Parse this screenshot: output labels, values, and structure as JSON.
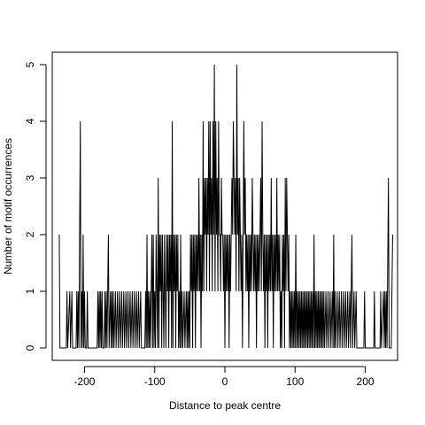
{
  "chart_data": {
    "type": "line",
    "title": "",
    "xlabel": "Distance to peak centre",
    "ylabel": "Number of motif occurrences",
    "xlim": [
      -246,
      246
    ],
    "ylim": [
      0,
      5
    ],
    "x_ticks": [
      -200,
      -100,
      0,
      100,
      200
    ],
    "y_ticks": [
      0,
      1,
      2,
      3,
      4,
      5
    ],
    "grid": false,
    "legend": "none",
    "line_color": "#000000",
    "points": [
      [
        -236,
        2
      ],
      [
        -235,
        0
      ],
      [
        -226,
        0
      ],
      [
        -225,
        1
      ],
      [
        -224,
        0
      ],
      [
        -221,
        1
      ],
      [
        -220,
        0
      ],
      [
        -218,
        1
      ],
      [
        -217,
        0
      ],
      [
        -212,
        0
      ],
      [
        -211,
        1
      ],
      [
        -210,
        0
      ],
      [
        -209,
        1
      ],
      [
        -208,
        0
      ],
      [
        -206,
        4
      ],
      [
        -205,
        0
      ],
      [
        -204,
        1
      ],
      [
        -203,
        0
      ],
      [
        -202,
        2
      ],
      [
        -201,
        0
      ],
      [
        -200,
        1
      ],
      [
        -199,
        0
      ],
      [
        -197,
        0
      ],
      [
        -196,
        1
      ],
      [
        -195,
        0
      ],
      [
        -182,
        0
      ],
      [
        -181,
        1
      ],
      [
        -180,
        0
      ],
      [
        -179,
        1
      ],
      [
        -178,
        0
      ],
      [
        -177,
        1
      ],
      [
        -176,
        0
      ],
      [
        -175,
        1
      ],
      [
        -174,
        0
      ],
      [
        -172,
        0
      ],
      [
        -171,
        1
      ],
      [
        -170,
        0
      ],
      [
        -169,
        1
      ],
      [
        -168,
        0
      ],
      [
        -166,
        2
      ],
      [
        -165,
        0
      ],
      [
        -163,
        1
      ],
      [
        -162,
        0
      ],
      [
        -161,
        1
      ],
      [
        -160,
        0
      ],
      [
        -159,
        1
      ],
      [
        -158,
        0
      ],
      [
        -156,
        1
      ],
      [
        -155,
        0
      ],
      [
        -153,
        1
      ],
      [
        -152,
        0
      ],
      [
        -150,
        1
      ],
      [
        -149,
        0
      ],
      [
        -147,
        1
      ],
      [
        -146,
        0
      ],
      [
        -144,
        1
      ],
      [
        -143,
        0
      ],
      [
        -141,
        1
      ],
      [
        -140,
        0
      ],
      [
        -138,
        1
      ],
      [
        -137,
        0
      ],
      [
        -135,
        1
      ],
      [
        -134,
        0
      ],
      [
        -132,
        1
      ],
      [
        -131,
        0
      ],
      [
        -129,
        1
      ],
      [
        -128,
        0
      ],
      [
        -126,
        1
      ],
      [
        -125,
        0
      ],
      [
        -123,
        1
      ],
      [
        -122,
        0
      ],
      [
        -120,
        1
      ],
      [
        -119,
        0
      ],
      [
        -114,
        0
      ],
      [
        -113,
        1
      ],
      [
        -112,
        0
      ],
      [
        -111,
        2
      ],
      [
        -110,
        0
      ],
      [
        -109,
        1
      ],
      [
        -108,
        0
      ],
      [
        -107,
        1
      ],
      [
        -106,
        0
      ],
      [
        -104,
        2
      ],
      [
        -103,
        0
      ],
      [
        -102,
        2
      ],
      [
        -101,
        0
      ],
      [
        -100,
        1
      ],
      [
        -99,
        0
      ],
      [
        -98,
        2
      ],
      [
        -97,
        1
      ],
      [
        -96,
        0
      ],
      [
        -95,
        3
      ],
      [
        -94,
        0
      ],
      [
        -93,
        2
      ],
      [
        -92,
        1
      ],
      [
        -91,
        2
      ],
      [
        -90,
        0
      ],
      [
        -89,
        2
      ],
      [
        -88,
        1
      ],
      [
        -87,
        0
      ],
      [
        -86,
        2
      ],
      [
        -85,
        1
      ],
      [
        -84,
        0
      ],
      [
        -83,
        2
      ],
      [
        -82,
        1
      ],
      [
        -81,
        2
      ],
      [
        -80,
        0
      ],
      [
        -79,
        2
      ],
      [
        -78,
        1
      ],
      [
        -77,
        2
      ],
      [
        -76,
        0
      ],
      [
        -75,
        4
      ],
      [
        -74,
        0
      ],
      [
        -73,
        2
      ],
      [
        -72,
        1
      ],
      [
        -71,
        2
      ],
      [
        -70,
        0
      ],
      [
        -69,
        2
      ],
      [
        -68,
        1
      ],
      [
        -67,
        2
      ],
      [
        -66,
        0
      ],
      [
        -65,
        1
      ],
      [
        -64,
        0
      ],
      [
        -63,
        2
      ],
      [
        -62,
        0
      ],
      [
        -61,
        1
      ],
      [
        -60,
        0
      ],
      [
        -58,
        1
      ],
      [
        -57,
        0
      ],
      [
        -55,
        1
      ],
      [
        -54,
        0
      ],
      [
        -53,
        1
      ],
      [
        -52,
        0
      ],
      [
        -51,
        1
      ],
      [
        -50,
        0
      ],
      [
        -49,
        2
      ],
      [
        -48,
        1
      ],
      [
        -47,
        2
      ],
      [
        -46,
        0
      ],
      [
        -45,
        2
      ],
      [
        -44,
        1
      ],
      [
        -43,
        2
      ],
      [
        -42,
        0
      ],
      [
        -41,
        2
      ],
      [
        -40,
        1
      ],
      [
        -39,
        2
      ],
      [
        -38,
        1
      ],
      [
        -37,
        3
      ],
      [
        -36,
        1
      ],
      [
        -35,
        2
      ],
      [
        -34,
        0
      ],
      [
        -33,
        2
      ],
      [
        -32,
        1
      ],
      [
        -31,
        4
      ],
      [
        -30,
        1
      ],
      [
        -29,
        3
      ],
      [
        -28,
        2
      ],
      [
        -27,
        3
      ],
      [
        -26,
        1
      ],
      [
        -25,
        3
      ],
      [
        -24,
        2
      ],
      [
        -23,
        4
      ],
      [
        -22,
        1
      ],
      [
        -21,
        4
      ],
      [
        -20,
        2
      ],
      [
        -19,
        3
      ],
      [
        -18,
        1
      ],
      [
        -17,
        4
      ],
      [
        -16,
        2
      ],
      [
        -15,
        5
      ],
      [
        -14,
        1
      ],
      [
        -13,
        4
      ],
      [
        -12,
        2
      ],
      [
        -11,
        3
      ],
      [
        -10,
        1
      ],
      [
        -9,
        4
      ],
      [
        -8,
        2
      ],
      [
        -7,
        2
      ],
      [
        -6,
        1
      ],
      [
        -5,
        3
      ],
      [
        -4,
        2
      ],
      [
        -3,
        2
      ],
      [
        -2,
        1
      ],
      [
        -1,
        2
      ],
      [
        0,
        0
      ],
      [
        1,
        2
      ],
      [
        2,
        1
      ],
      [
        3,
        2
      ],
      [
        4,
        1
      ],
      [
        5,
        2
      ],
      [
        6,
        0
      ],
      [
        7,
        2
      ],
      [
        8,
        1
      ],
      [
        9,
        2
      ],
      [
        10,
        3
      ],
      [
        11,
        2
      ],
      [
        12,
        4
      ],
      [
        13,
        3
      ],
      [
        14,
        2
      ],
      [
        15,
        3
      ],
      [
        16,
        1
      ],
      [
        17,
        5
      ],
      [
        18,
        2
      ],
      [
        19,
        3
      ],
      [
        20,
        1
      ],
      [
        21,
        3
      ],
      [
        22,
        2
      ],
      [
        23,
        1
      ],
      [
        24,
        2
      ],
      [
        25,
        0
      ],
      [
        26,
        2
      ],
      [
        27,
        4
      ],
      [
        28,
        2
      ],
      [
        29,
        3
      ],
      [
        30,
        1
      ],
      [
        31,
        2
      ],
      [
        32,
        1
      ],
      [
        33,
        2
      ],
      [
        34,
        0
      ],
      [
        35,
        2
      ],
      [
        36,
        1
      ],
      [
        37,
        2
      ],
      [
        38,
        1
      ],
      [
        39,
        3
      ],
      [
        40,
        2
      ],
      [
        41,
        1
      ],
      [
        42,
        2
      ],
      [
        43,
        1
      ],
      [
        44,
        2
      ],
      [
        45,
        0
      ],
      [
        46,
        2
      ],
      [
        47,
        1
      ],
      [
        48,
        2
      ],
      [
        49,
        1
      ],
      [
        50,
        2
      ],
      [
        51,
        3
      ],
      [
        52,
        1
      ],
      [
        53,
        4
      ],
      [
        54,
        2
      ],
      [
        55,
        1
      ],
      [
        56,
        2
      ],
      [
        57,
        0
      ],
      [
        58,
        2
      ],
      [
        59,
        1
      ],
      [
        60,
        2
      ],
      [
        61,
        0
      ],
      [
        62,
        2
      ],
      [
        63,
        1
      ],
      [
        64,
        2
      ],
      [
        65,
        1
      ],
      [
        66,
        3
      ],
      [
        67,
        1
      ],
      [
        68,
        2
      ],
      [
        69,
        0
      ],
      [
        70,
        2
      ],
      [
        71,
        1
      ],
      [
        72,
        2
      ],
      [
        73,
        1
      ],
      [
        74,
        3
      ],
      [
        75,
        1
      ],
      [
        76,
        2
      ],
      [
        77,
        1
      ],
      [
        78,
        2
      ],
      [
        79,
        0
      ],
      [
        80,
        1
      ],
      [
        81,
        0
      ],
      [
        82,
        2
      ],
      [
        83,
        1
      ],
      [
        84,
        2
      ],
      [
        85,
        0
      ],
      [
        86,
        3
      ],
      [
        87,
        1
      ],
      [
        88,
        3
      ],
      [
        89,
        2
      ],
      [
        90,
        1
      ],
      [
        91,
        2
      ],
      [
        92,
        0
      ],
      [
        93,
        1
      ],
      [
        94,
        0
      ],
      [
        95,
        1
      ],
      [
        96,
        0
      ],
      [
        97,
        1
      ],
      [
        98,
        0
      ],
      [
        99,
        1
      ],
      [
        100,
        0
      ],
      [
        101,
        2
      ],
      [
        102,
        0
      ],
      [
        103,
        1
      ],
      [
        104,
        0
      ],
      [
        105,
        1
      ],
      [
        106,
        0
      ],
      [
        107,
        1
      ],
      [
        108,
        0
      ],
      [
        109,
        1
      ],
      [
        110,
        0
      ],
      [
        111,
        1
      ],
      [
        112,
        0
      ],
      [
        113,
        1
      ],
      [
        114,
        0
      ],
      [
        115,
        1
      ],
      [
        116,
        0
      ],
      [
        117,
        1
      ],
      [
        118,
        0
      ],
      [
        119,
        1
      ],
      [
        120,
        0
      ],
      [
        121,
        1
      ],
      [
        122,
        0
      ],
      [
        123,
        1
      ],
      [
        124,
        0
      ],
      [
        125,
        1
      ],
      [
        126,
        0
      ],
      [
        127,
        2
      ],
      [
        128,
        0
      ],
      [
        129,
        1
      ],
      [
        130,
        0
      ],
      [
        131,
        1
      ],
      [
        132,
        0
      ],
      [
        133,
        1
      ],
      [
        134,
        0
      ],
      [
        135,
        1
      ],
      [
        136,
        0
      ],
      [
        137,
        1
      ],
      [
        138,
        0
      ],
      [
        139,
        1
      ],
      [
        140,
        0
      ],
      [
        141,
        1
      ],
      [
        142,
        0
      ],
      [
        144,
        1
      ],
      [
        145,
        0
      ],
      [
        147,
        1
      ],
      [
        148,
        0
      ],
      [
        150,
        1
      ],
      [
        151,
        0
      ],
      [
        153,
        1
      ],
      [
        154,
        0
      ],
      [
        155,
        2
      ],
      [
        156,
        0
      ],
      [
        157,
        1
      ],
      [
        158,
        0
      ],
      [
        160,
        1
      ],
      [
        161,
        0
      ],
      [
        163,
        1
      ],
      [
        164,
        0
      ],
      [
        166,
        1
      ],
      [
        167,
        0
      ],
      [
        169,
        1
      ],
      [
        170,
        0
      ],
      [
        172,
        1
      ],
      [
        173,
        0
      ],
      [
        175,
        1
      ],
      [
        176,
        0
      ],
      [
        178,
        1
      ],
      [
        179,
        0
      ],
      [
        181,
        2
      ],
      [
        182,
        0
      ],
      [
        184,
        1
      ],
      [
        185,
        0
      ],
      [
        187,
        1
      ],
      [
        188,
        0
      ],
      [
        198,
        0
      ],
      [
        199,
        1
      ],
      [
        200,
        0
      ],
      [
        212,
        0
      ],
      [
        213,
        1
      ],
      [
        214,
        0
      ],
      [
        221,
        0
      ],
      [
        222,
        1
      ],
      [
        223,
        0
      ],
      [
        226,
        1
      ],
      [
        227,
        0
      ],
      [
        228,
        1
      ],
      [
        229,
        0
      ],
      [
        230,
        1
      ],
      [
        231,
        0
      ],
      [
        233,
        3
      ],
      [
        234,
        0
      ],
      [
        237,
        0
      ],
      [
        238,
        1
      ],
      [
        239,
        2
      ]
    ]
  }
}
